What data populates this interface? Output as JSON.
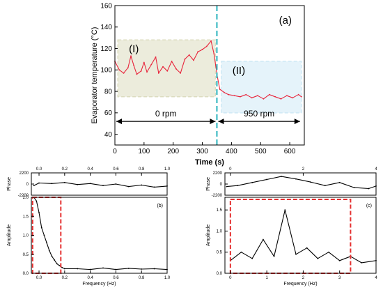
{
  "chart_data": [
    {
      "id": "a",
      "type": "line",
      "panel_label": "(a)",
      "xlabel": "Time (s)",
      "ylabel": "Evaporator temperature (°C)",
      "xlim": [
        0,
        650
      ],
      "ylim": [
        30,
        160
      ],
      "xticks": [
        0,
        100,
        200,
        300,
        400,
        500,
        600
      ],
      "yticks": [
        40,
        60,
        80,
        100,
        120,
        140,
        160
      ],
      "series": [
        {
          "color": "#e8243b",
          "x": [
            0,
            15,
            30,
            45,
            55,
            65,
            75,
            90,
            100,
            110,
            125,
            140,
            150,
            165,
            180,
            195,
            210,
            225,
            240,
            255,
            270,
            285,
            300,
            315,
            330,
            340,
            350,
            360,
            375,
            390,
            410,
            430,
            450,
            470,
            490,
            510,
            530,
            550,
            570,
            590,
            610,
            630,
            640
          ],
          "y": [
            108,
            100,
            97,
            102,
            113,
            104,
            96,
            99,
            107,
            98,
            105,
            112,
            97,
            103,
            99,
            108,
            101,
            97,
            110,
            114,
            109,
            117,
            119,
            122,
            127,
            115,
            96,
            82,
            79,
            77,
            76,
            75,
            77,
            74,
            76,
            73,
            77,
            75,
            73,
            76,
            74,
            77,
            75
          ]
        }
      ],
      "regions": [
        {
          "label": "(I)",
          "x": [
            10,
            345
          ],
          "y": [
            75,
            128
          ],
          "color": "#dcdcc0"
        },
        {
          "label": "(II)",
          "x": [
            365,
            640
          ],
          "y": [
            60,
            108
          ],
          "color": "#cfe9f5"
        }
      ],
      "divider_x": 350,
      "annotations": [
        {
          "label": "0 rpm",
          "x": [
            0,
            350
          ],
          "y": 52
        },
        {
          "label": "950 rpm",
          "x": [
            350,
            640
          ],
          "y": 52
        }
      ]
    },
    {
      "id": "b_phase",
      "type": "line",
      "ylabel": "Phase",
      "xlim": [
        -0.06,
        1.0
      ],
      "ylim": [
        -2200,
        2200
      ],
      "xticks": [
        0.0,
        0.2,
        0.4,
        0.6,
        0.8,
        1.0
      ],
      "yticks": [
        -2200,
        0,
        2200
      ],
      "xtick_labels": [
        "0.0",
        "0.2",
        "0.4",
        "0.6",
        "0.8",
        "1.0"
      ],
      "series": [
        {
          "color": "#000000",
          "x": [
            -0.04,
            0.0,
            0.1,
            0.2,
            0.3,
            0.4,
            0.5,
            0.6,
            0.7,
            0.8,
            0.9,
            1.0
          ],
          "y": [
            -300,
            200,
            100,
            300,
            -100,
            100,
            -300,
            0,
            -500,
            -200,
            -600,
            -400
          ]
        }
      ]
    },
    {
      "id": "b_amplitude",
      "type": "line",
      "panel_label": "(b)",
      "xlabel": "Frequency (Hz)",
      "ylabel": "Amplitude",
      "xlim": [
        -0.06,
        1.0
      ],
      "ylim": [
        0.0,
        2.0
      ],
      "xticks": [
        0.0,
        0.2,
        0.4,
        0.6,
        0.8,
        1.0
      ],
      "yticks": [
        0.0,
        0.5,
        1.0,
        1.5,
        2.0
      ],
      "xtick_labels": [
        "0.0",
        "0.2",
        "0.4",
        "0.6",
        "0.8",
        "1.0"
      ],
      "ytick_labels": [
        "0.0",
        "0.5",
        "1.0",
        "1.5",
        "2.0"
      ],
      "series": [
        {
          "color": "#000000",
          "x": [
            -0.04,
            -0.02,
            0.0,
            0.02,
            0.04,
            0.06,
            0.08,
            0.1,
            0.12,
            0.14,
            0.16,
            0.18,
            0.2,
            0.3,
            0.4,
            0.5,
            0.6,
            0.7,
            0.8,
            0.9,
            1.0
          ],
          "y": [
            2.0,
            1.9,
            1.6,
            1.2,
            1.0,
            0.8,
            0.6,
            0.45,
            0.35,
            0.25,
            0.2,
            0.15,
            0.12,
            0.12,
            0.1,
            0.14,
            0.1,
            0.13,
            0.11,
            0.12,
            0.1
          ]
        }
      ],
      "highlight_box": {
        "x": [
          -0.05,
          0.17
        ],
        "y": [
          0.0,
          2.0
        ],
        "color": "#e53030"
      }
    },
    {
      "id": "c_phase",
      "type": "line",
      "ylabel": "Phase",
      "xlim": [
        -0.15,
        4.0
      ],
      "ylim": [
        -2200,
        2200
      ],
      "xticks": [
        0,
        2,
        4
      ],
      "yticks": [
        -2200,
        0,
        2200
      ],
      "xtick_labels": [
        "0",
        "2",
        "4"
      ],
      "series": [
        {
          "color": "#000000",
          "x": [
            -0.1,
            0.2,
            0.6,
            1.0,
            1.4,
            1.8,
            2.2,
            2.6,
            3.0,
            3.4,
            3.8,
            4.0
          ],
          "y": [
            -500,
            -300,
            300,
            900,
            1500,
            1000,
            400,
            -300,
            300,
            -700,
            -900,
            -400
          ]
        }
      ]
    },
    {
      "id": "c_amplitude",
      "type": "line",
      "panel_label": "(c)",
      "xlabel": "Frequency (Hz)",
      "ylabel": "Amplitude",
      "xlim": [
        -0.15,
        4.0
      ],
      "ylim": [
        0.0,
        1.8
      ],
      "xticks": [
        0,
        1,
        2,
        3,
        4
      ],
      "yticks": [
        0.0,
        0.5,
        1.0,
        1.5
      ],
      "xtick_labels": [
        "0",
        "1",
        "2",
        "3",
        "4"
      ],
      "ytick_labels": [
        "0.0",
        "0.5",
        "1.0",
        "1.5"
      ],
      "series": [
        {
          "color": "#000000",
          "x": [
            0.0,
            0.3,
            0.6,
            0.9,
            1.2,
            1.5,
            1.8,
            2.1,
            2.4,
            2.7,
            3.0,
            3.3,
            3.6,
            4.0
          ],
          "y": [
            0.3,
            0.5,
            0.35,
            0.8,
            0.4,
            1.5,
            0.45,
            0.6,
            0.35,
            0.5,
            0.3,
            0.4,
            0.25,
            0.3
          ]
        }
      ],
      "highlight_box": {
        "x": [
          0.0,
          3.3
        ],
        "y": [
          0.0,
          1.75
        ],
        "color": "#e53030"
      }
    }
  ]
}
